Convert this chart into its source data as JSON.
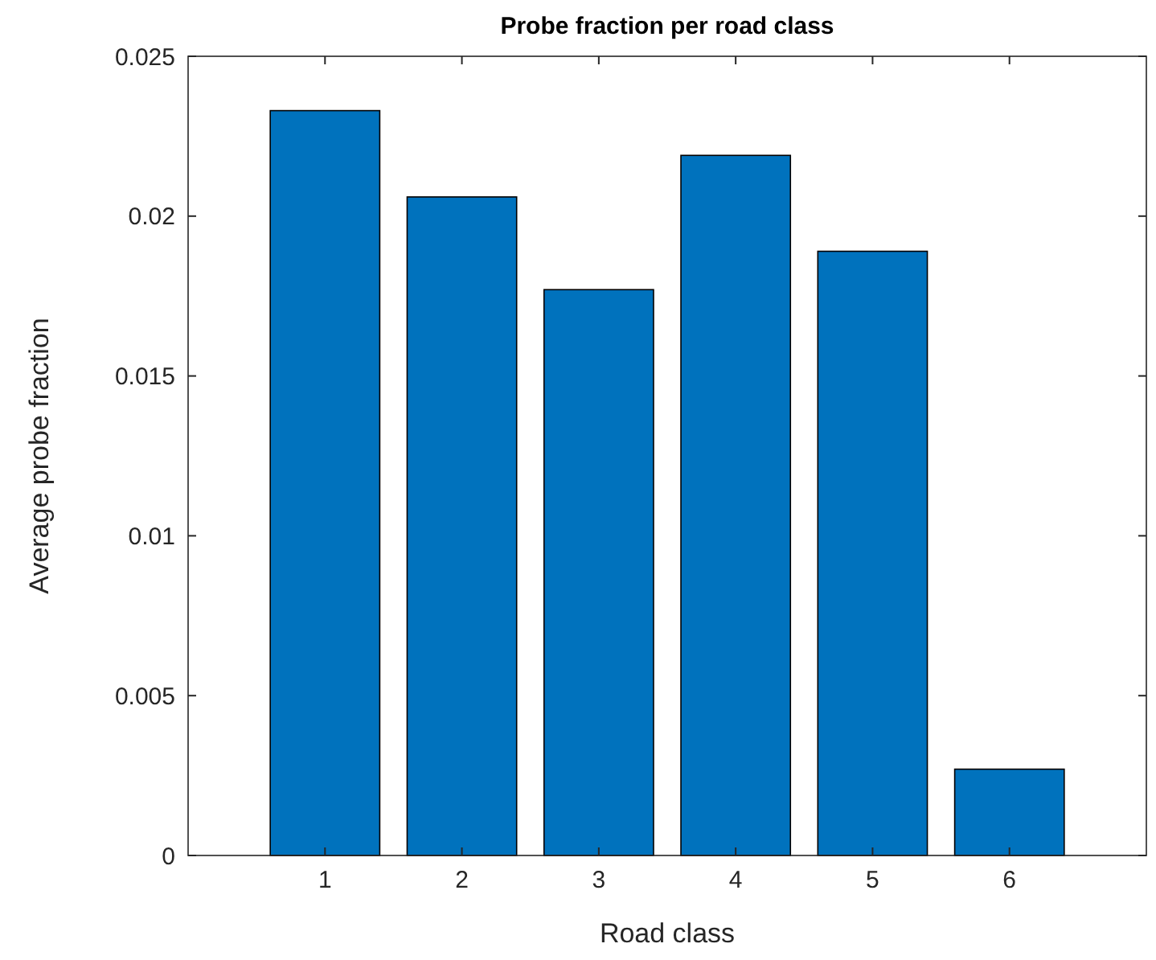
{
  "chart_data": {
    "type": "bar",
    "title": "Probe fraction per road class",
    "xlabel": "Road class",
    "ylabel": "Average probe fraction",
    "x": [
      1,
      2,
      3,
      4,
      5,
      6
    ],
    "values": [
      0.0233,
      0.0206,
      0.0177,
      0.0219,
      0.0189,
      0.0027
    ],
    "color": "#0072bd",
    "xlim": [
      0,
      7
    ],
    "xticks": [
      1,
      2,
      3,
      4,
      5,
      6
    ],
    "ylim": [
      0,
      0.025
    ],
    "yticks": [
      0,
      0.005,
      0.01,
      0.015,
      0.02,
      0.025
    ],
    "grid": false
  }
}
